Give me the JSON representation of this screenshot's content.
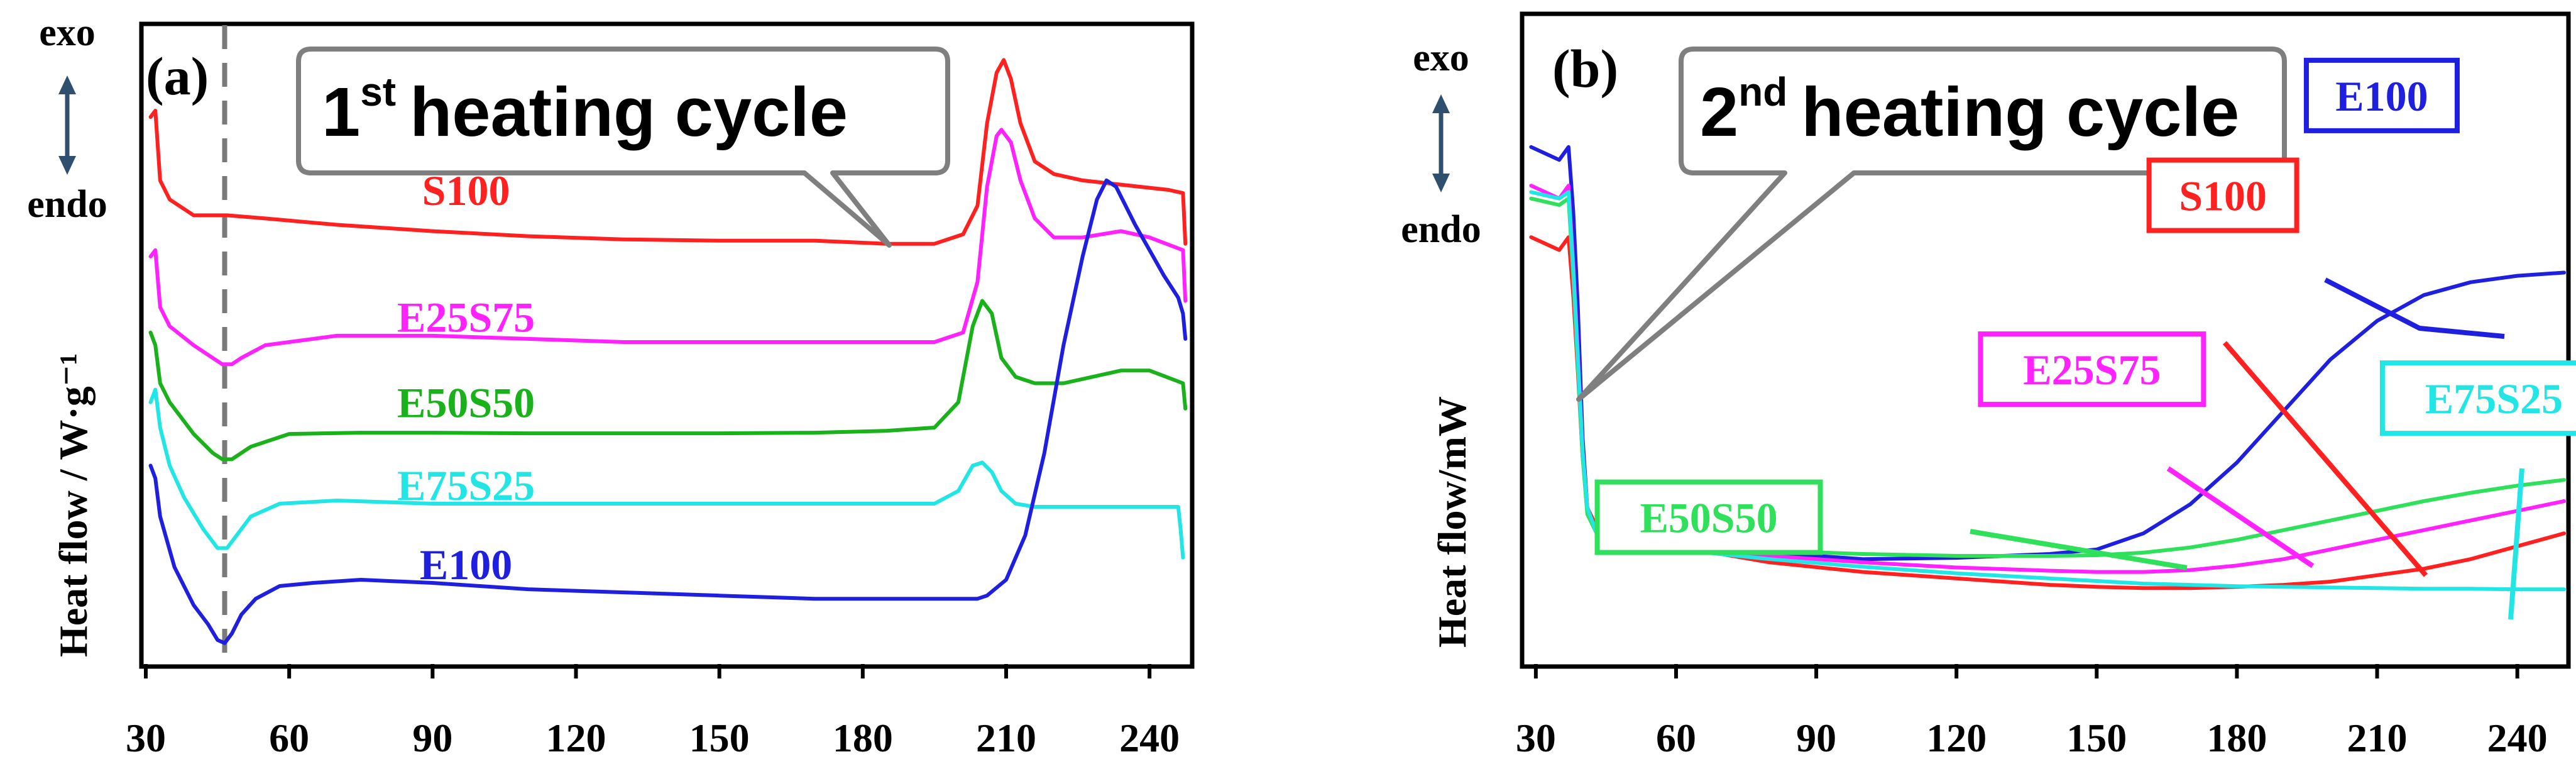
{
  "chart_data": [
    {
      "panel": "(a)",
      "type": "line",
      "callout": {
        "prefix": "1",
        "superscript": "st",
        "text": "heating cycle"
      },
      "ylabel": "Heat flow / W·g⁻¹",
      "direction": {
        "top": "exo",
        "bottom": "endo"
      },
      "xlim": [
        30,
        248
      ],
      "ylim": [
        0,
        1
      ],
      "xticks": [
        "30",
        "60",
        "90",
        "120",
        "150",
        "180",
        "210",
        "240"
      ],
      "reference_line_x": 46.5,
      "series": [
        {
          "name": "S100",
          "color": "#ff2020",
          "x": [
            31,
            32,
            33,
            35,
            40,
            47,
            55,
            70,
            90,
            110,
            130,
            150,
            170,
            185,
            195,
            201,
            204,
            206,
            208,
            209.5,
            211,
            213,
            216,
            220,
            226,
            232,
            238,
            244,
            247,
            247.5
          ],
          "y": [
            0.86,
            0.87,
            0.76,
            0.73,
            0.705,
            0.705,
            0.7,
            0.69,
            0.68,
            0.672,
            0.667,
            0.665,
            0.665,
            0.66,
            0.66,
            0.675,
            0.72,
            0.85,
            0.93,
            0.95,
            0.92,
            0.85,
            0.79,
            0.77,
            0.76,
            0.755,
            0.75,
            0.745,
            0.74,
            0.66
          ]
        },
        {
          "name": "E25S75",
          "color": "#ff22ff",
          "x": [
            31,
            32,
            33,
            35,
            40,
            44,
            46,
            48,
            50,
            55,
            70,
            90,
            110,
            130,
            150,
            170,
            185,
            195,
            201,
            204,
            206,
            208,
            209,
            211,
            213,
            216,
            220,
            226,
            234,
            240,
            247,
            247.5
          ],
          "y": [
            0.64,
            0.65,
            0.56,
            0.53,
            0.5,
            0.48,
            0.47,
            0.47,
            0.48,
            0.5,
            0.515,
            0.515,
            0.51,
            0.505,
            0.505,
            0.505,
            0.505,
            0.505,
            0.52,
            0.6,
            0.75,
            0.83,
            0.84,
            0.82,
            0.76,
            0.7,
            0.67,
            0.67,
            0.68,
            0.67,
            0.65,
            0.57
          ]
        },
        {
          "name": "E50S50",
          "color": "#1ab21a",
          "x": [
            31,
            32,
            33,
            35,
            40,
            44,
            46,
            48,
            52,
            60,
            75,
            90,
            110,
            130,
            150,
            170,
            185,
            195,
            200,
            203,
            205,
            207,
            209,
            212,
            216,
            222,
            228,
            234,
            240,
            247,
            247.5
          ],
          "y": [
            0.52,
            0.5,
            0.44,
            0.41,
            0.36,
            0.33,
            0.32,
            0.32,
            0.34,
            0.36,
            0.362,
            0.362,
            0.361,
            0.361,
            0.361,
            0.362,
            0.365,
            0.37,
            0.41,
            0.53,
            0.57,
            0.55,
            0.48,
            0.45,
            0.44,
            0.44,
            0.45,
            0.46,
            0.46,
            0.44,
            0.4
          ]
        },
        {
          "name": "E75S25",
          "color": "#22e6e6",
          "x": [
            31,
            32,
            33,
            35,
            38,
            42,
            45,
            47,
            49,
            52,
            58,
            70,
            90,
            110,
            130,
            150,
            170,
            185,
            195,
            200,
            203,
            205,
            207,
            209,
            212,
            216,
            222,
            230,
            240,
            246,
            246.5,
            247
          ],
          "y": [
            0.41,
            0.43,
            0.37,
            0.31,
            0.26,
            0.21,
            0.18,
            0.18,
            0.2,
            0.23,
            0.25,
            0.255,
            0.25,
            0.25,
            0.25,
            0.25,
            0.25,
            0.25,
            0.25,
            0.27,
            0.31,
            0.315,
            0.3,
            0.27,
            0.25,
            0.245,
            0.245,
            0.245,
            0.245,
            0.245,
            0.21,
            0.165
          ]
        },
        {
          "name": "E100",
          "color": "#1f1fdf",
          "x": [
            31,
            32,
            33,
            36,
            40,
            43,
            45,
            46.5,
            48,
            50,
            53,
            58,
            65,
            75,
            90,
            110,
            130,
            150,
            170,
            185,
            195,
            200,
            204,
            206,
            210,
            214,
            218,
            222,
            226,
            229,
            231,
            233,
            235,
            237,
            240,
            243,
            246,
            247,
            247.5
          ],
          "y": [
            0.31,
            0.29,
            0.23,
            0.15,
            0.09,
            0.06,
            0.035,
            0.03,
            0.045,
            0.075,
            0.1,
            0.12,
            0.125,
            0.13,
            0.125,
            0.115,
            0.11,
            0.105,
            0.1,
            0.1,
            0.1,
            0.1,
            0.1,
            0.105,
            0.13,
            0.2,
            0.33,
            0.5,
            0.64,
            0.73,
            0.76,
            0.75,
            0.72,
            0.69,
            0.65,
            0.61,
            0.575,
            0.55,
            0.51
          ]
        }
      ],
      "annotations": [
        {
          "text": "S100",
          "color": "#ff2020",
          "x": 97,
          "y": 0.745
        },
        {
          "text": "E25S75",
          "color": "#ff22ff",
          "x": 97,
          "y": 0.545
        },
        {
          "text": "E50S50",
          "color": "#1ab21a",
          "x": 97,
          "y": 0.41
        },
        {
          "text": "E75S25",
          "color": "#22e6e6",
          "x": 97,
          "y": 0.28
        },
        {
          "text": "E100",
          "color": "#1f1fdf",
          "x": 97,
          "y": 0.155
        }
      ]
    },
    {
      "panel": "(b)",
      "type": "line",
      "callout": {
        "prefix": "2",
        "superscript": "nd",
        "text": "heating cycle"
      },
      "ylabel": "Heat flow/mW",
      "direction": {
        "top": "exo",
        "bottom": "endo"
      },
      "xlim": [
        28,
        250
      ],
      "ylim": [
        0,
        1
      ],
      "xticks": [
        "30",
        "60",
        "90",
        "120",
        "150",
        "180",
        "210",
        "240"
      ],
      "series": [
        {
          "name": "E100",
          "color": "#1f1fdf",
          "x": [
            29,
            35,
            37,
            38,
            39,
            40,
            41,
            43,
            46,
            50,
            60,
            80,
            100,
            120,
            140,
            150,
            160,
            170,
            180,
            190,
            200,
            210,
            220,
            230,
            240,
            250
          ],
          "y": [
            0.8,
            0.78,
            0.8,
            0.7,
            0.55,
            0.35,
            0.24,
            0.2,
            0.19,
            0.185,
            0.18,
            0.17,
            0.16,
            0.162,
            0.168,
            0.175,
            0.2,
            0.245,
            0.31,
            0.39,
            0.47,
            0.53,
            0.57,
            0.59,
            0.6,
            0.605
          ]
        },
        {
          "name": "S100",
          "color": "#ff2020",
          "x": [
            29,
            35,
            37,
            38,
            39,
            40,
            41,
            43,
            46,
            50,
            60,
            80,
            100,
            120,
            140,
            150,
            160,
            170,
            180,
            190,
            200,
            210,
            220,
            230,
            240,
            250
          ],
          "y": [
            0.66,
            0.64,
            0.66,
            0.57,
            0.45,
            0.32,
            0.24,
            0.21,
            0.2,
            0.195,
            0.18,
            0.155,
            0.14,
            0.13,
            0.12,
            0.117,
            0.115,
            0.115,
            0.117,
            0.12,
            0.125,
            0.135,
            0.145,
            0.16,
            0.18,
            0.2
          ]
        },
        {
          "name": "E25S75",
          "color": "#ff22ff",
          "x": [
            29,
            35,
            37,
            38,
            39,
            40,
            41,
            43,
            46,
            50,
            60,
            80,
            100,
            120,
            140,
            150,
            160,
            170,
            180,
            190,
            200,
            210,
            220,
            230,
            240,
            250
          ],
          "y": [
            0.74,
            0.72,
            0.74,
            0.62,
            0.48,
            0.33,
            0.24,
            0.2,
            0.19,
            0.185,
            0.175,
            0.165,
            0.155,
            0.147,
            0.142,
            0.14,
            0.14,
            0.143,
            0.15,
            0.16,
            0.175,
            0.19,
            0.205,
            0.22,
            0.235,
            0.25
          ]
        },
        {
          "name": "E50S50",
          "color": "#2ee05a",
          "x": [
            29,
            35,
            37,
            38,
            39,
            40,
            41,
            43,
            46,
            50,
            60,
            80,
            100,
            120,
            140,
            150,
            160,
            170,
            180,
            190,
            200,
            210,
            220,
            230,
            240,
            250
          ],
          "y": [
            0.72,
            0.71,
            0.72,
            0.6,
            0.46,
            0.32,
            0.23,
            0.2,
            0.19,
            0.185,
            0.18,
            0.173,
            0.168,
            0.165,
            0.165,
            0.166,
            0.17,
            0.178,
            0.19,
            0.205,
            0.22,
            0.235,
            0.25,
            0.263,
            0.274,
            0.283
          ]
        },
        {
          "name": "E75S25",
          "color": "#22e6e6",
          "x": [
            29,
            35,
            37,
            38,
            39,
            40,
            41,
            43,
            46,
            50,
            60,
            80,
            100,
            120,
            140,
            150,
            160,
            170,
            180,
            190,
            200,
            210,
            220,
            230,
            240,
            250
          ],
          "y": [
            0.73,
            0.72,
            0.73,
            0.61,
            0.47,
            0.33,
            0.24,
            0.2,
            0.19,
            0.185,
            0.175,
            0.16,
            0.148,
            0.138,
            0.13,
            0.126,
            0.122,
            0.12,
            0.118,
            0.117,
            0.116,
            0.115,
            0.114,
            0.114,
            0.113,
            0.113
          ]
        }
      ],
      "annotations": [
        {
          "text": "E100",
          "color": "#1f1fdf",
          "x": 211,
          "y": 0.88
        },
        {
          "text": "S100",
          "color": "#ff2020",
          "x": 177,
          "y": 0.725
        },
        {
          "text": "E25S75",
          "color": "#ff22ff",
          "x": 149,
          "y": 0.455
        },
        {
          "text": "E75S25",
          "color": "#22e6e6",
          "x": 235,
          "y": 0.41
        },
        {
          "text": "E50S50",
          "color": "#2ee05a",
          "x": 67,
          "y": 0.225
        }
      ]
    }
  ]
}
